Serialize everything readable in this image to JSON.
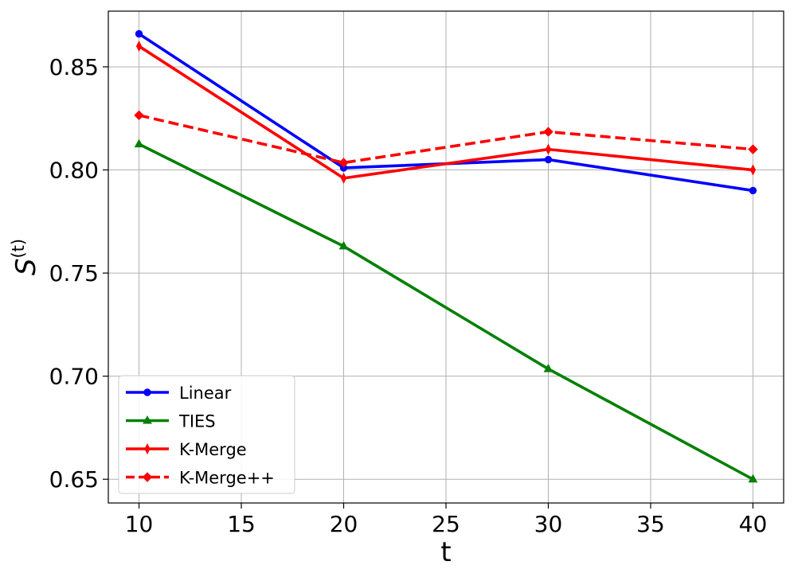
{
  "chart_data": {
    "type": "line",
    "title": "",
    "xlabel": "t",
    "ylabel_base": "S",
    "ylabel_sup": "(t)",
    "x": [
      10,
      20,
      30,
      40
    ],
    "xlim": [
      8.5,
      41.5
    ],
    "ylim": [
      0.6385,
      0.877
    ],
    "xticks": [
      10,
      15,
      20,
      25,
      30,
      35,
      40
    ],
    "yticks": [
      0.65,
      0.7,
      0.75,
      0.8,
      0.85
    ],
    "ytick_labels": [
      "0.65",
      "0.70",
      "0.75",
      "0.80",
      "0.85"
    ],
    "grid": true,
    "legend_position": "lower-left",
    "series": [
      {
        "name": "Linear",
        "values": [
          0.866,
          0.801,
          0.805,
          0.79
        ],
        "color": "#0000ff",
        "marker": "circle",
        "dash": "solid"
      },
      {
        "name": "TIES",
        "values": [
          0.8125,
          0.763,
          0.7035,
          0.65
        ],
        "color": "#008000",
        "marker": "triangle",
        "dash": "solid"
      },
      {
        "name": "K-Merge",
        "values": [
          0.86,
          0.796,
          0.81,
          0.8
        ],
        "color": "#ff0000",
        "marker": "thin-diamond",
        "dash": "solid"
      },
      {
        "name": "K-Merge++",
        "values": [
          0.8265,
          0.8035,
          0.8185,
          0.81
        ],
        "color": "#ff0000",
        "marker": "diamond",
        "dash": "dashed"
      }
    ]
  }
}
